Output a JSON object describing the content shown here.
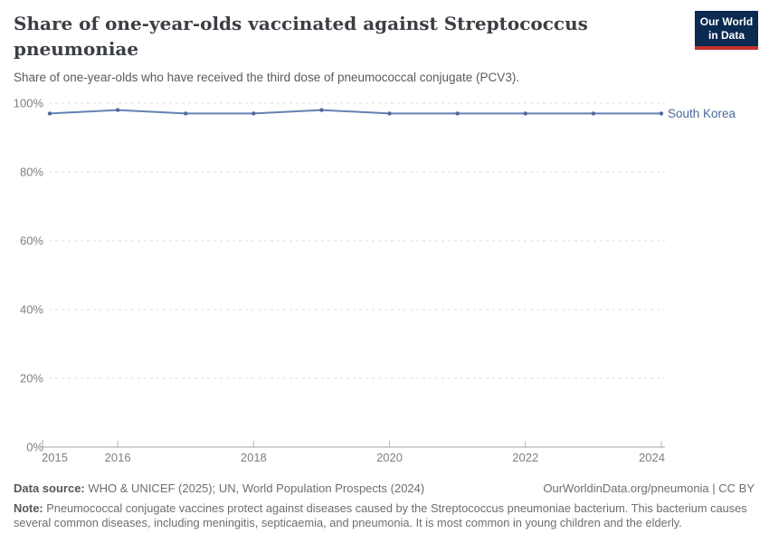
{
  "header": {
    "title": "Share of one-year-olds vaccinated against Streptococcus pneumoniae",
    "subtitle": "Share of one-year-olds who have received the third dose of pneumococcal conjugate (PCV3).",
    "logo": {
      "line1": "Our World",
      "line2": "in Data"
    }
  },
  "colors": {
    "series_blue": "#4C6A9C",
    "line_blue": "#5B7BAD",
    "grid_gray": "#dddddd",
    "axis_gray": "#a6a6a6",
    "tick_gray": "#b3b3b3",
    "tick_label_gray": "#7f7f7f",
    "logo_bg": "#0A2A51",
    "logo_stripe": "#C5302B"
  },
  "chart_data": {
    "type": "line",
    "title": "Share of one-year-olds vaccinated against Streptococcus pneumoniae",
    "subtitle": "Share of one-year-olds who have received the third dose of pneumococcal conjugate (PCV3).",
    "x": [
      2015,
      2016,
      2017,
      2018,
      2019,
      2020,
      2021,
      2022,
      2023,
      2024
    ],
    "series": [
      {
        "name": "South Korea",
        "values": [
          97,
          98,
          97,
          97,
          98,
          97,
          97,
          97,
          97,
          97
        ]
      }
    ],
    "xlabel": "",
    "ylabel": "",
    "ylim": [
      0,
      100
    ],
    "yticks": [
      0,
      20,
      40,
      60,
      80,
      100
    ],
    "ytick_format": "percent",
    "xticks": [
      2015,
      2016,
      2018,
      2020,
      2022,
      2024
    ],
    "grid": "dashed-horizontal",
    "legend_position": "line-end-label",
    "entity_label": "South Korea"
  },
  "footer": {
    "data_source_label": "Data source:",
    "data_source_text": "WHO & UNICEF (2025); UN, World Population Prospects (2024)",
    "rights": "OurWorldinData.org/pneumonia | CC BY",
    "note_label": "Note:",
    "note_text": "Pneumococcal conjugate vaccines protect against diseases caused by the Streptococcus pneumoniae bacterium. This bacterium causes several common diseases, including meningitis, septicaemia, and pneumonia. It is most common in young children and the elderly."
  }
}
